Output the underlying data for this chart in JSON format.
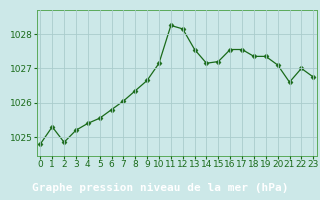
{
  "x": [
    0,
    1,
    2,
    3,
    4,
    5,
    6,
    7,
    8,
    9,
    10,
    11,
    12,
    13,
    14,
    15,
    16,
    17,
    18,
    19,
    20,
    21,
    22,
    23
  ],
  "y": [
    1024.8,
    1025.3,
    1024.85,
    1025.2,
    1025.4,
    1025.55,
    1025.8,
    1026.05,
    1026.35,
    1026.65,
    1027.15,
    1028.25,
    1028.15,
    1027.55,
    1027.15,
    1027.2,
    1027.55,
    1027.55,
    1027.35,
    1027.35,
    1027.1,
    1026.6,
    1027.0,
    1026.75
  ],
  "line_color": "#1a6b1a",
  "marker": "D",
  "marker_size": 2.5,
  "plot_bg_color": "#cce8e8",
  "fig_bg_color": "#cce8e8",
  "grid_color": "#aacccc",
  "xlabel": "Graphe pression niveau de la mer (hPa)",
  "xlabel_fontsize": 8,
  "xlabel_color": "#1a6b1a",
  "xlabel_bg_color": "#2d8b2d",
  "ytick_labels": [
    "1025",
    "1026",
    "1027",
    "1028"
  ],
  "yticks": [
    1025,
    1026,
    1027,
    1028
  ],
  "ylim": [
    1024.45,
    1028.7
  ],
  "xlim": [
    -0.3,
    23.3
  ],
  "xticks": [
    0,
    1,
    2,
    3,
    4,
    5,
    6,
    7,
    8,
    9,
    10,
    11,
    12,
    13,
    14,
    15,
    16,
    17,
    18,
    19,
    20,
    21,
    22,
    23
  ],
  "tick_fontsize": 6.5,
  "tick_color": "#1a6b1a",
  "spine_color": "#5aaa5a"
}
